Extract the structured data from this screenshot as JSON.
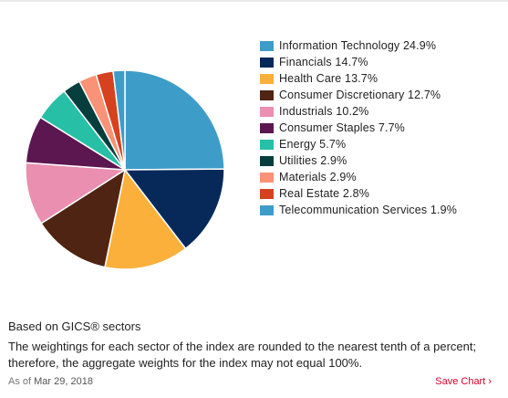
{
  "chart_data": {
    "type": "pie",
    "slices": [
      {
        "label": "Information Technology",
        "value": 24.9,
        "display": "Information Technology 24.9%",
        "color": "#3e9cc9"
      },
      {
        "label": "Financials",
        "value": 14.7,
        "display": "Financials 14.7%",
        "color": "#06295a"
      },
      {
        "label": "Health Care",
        "value": 13.7,
        "display": "Health Care 13.7%",
        "color": "#fbb03b"
      },
      {
        "label": "Consumer Discretionary",
        "value": 12.7,
        "display": "Consumer Discretionary 12.7%",
        "color": "#4f2412"
      },
      {
        "label": "Industrials",
        "value": 10.2,
        "display": "Industrials 10.2%",
        "color": "#ea8faf"
      },
      {
        "label": "Consumer Staples",
        "value": 7.7,
        "display": "Consumer Staples 7.7%",
        "color": "#5c1650"
      },
      {
        "label": "Energy",
        "value": 5.7,
        "display": "Energy 5.7%",
        "color": "#27bfa6"
      },
      {
        "label": "Utilities",
        "value": 2.9,
        "display": "Utilities 2.9%",
        "color": "#053e3c"
      },
      {
        "label": "Materials",
        "value": 2.9,
        "display": "Materials 2.9%",
        "color": "#f99276"
      },
      {
        "label": "Real Estate",
        "value": 2.8,
        "display": "Real Estate 2.8%",
        "color": "#d6411f"
      },
      {
        "label": "Telecommunication Services",
        "value": 1.9,
        "display": "Telecommunication Services 1.9%",
        "color": "#3e9cc9"
      }
    ],
    "legend_position": "right"
  },
  "footer": {
    "basis": "Based on GICS® sectors",
    "note": "The weightings for each sector of the index are rounded to the nearest tenth of a percent; therefore, the aggregate weights for the index may not equal 100%.",
    "as_of_prefix": "As of",
    "as_of_date": "Mar 29, 2018",
    "save_label": "Save Chart ›"
  },
  "colors": {
    "top_rule": "#e8e8e8",
    "link": "#d6002a"
  }
}
